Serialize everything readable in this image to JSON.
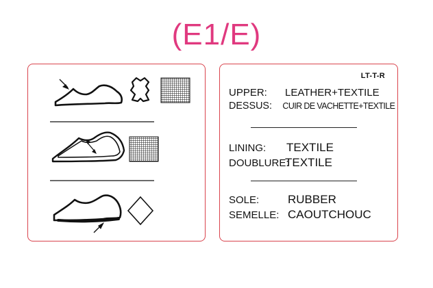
{
  "title": "(E1/E)",
  "colors": {
    "title": "#e0397f",
    "card_border": "#d9434c",
    "ink": "#111111"
  },
  "icons": {
    "left_panel": [
      "shoe-upper-icon",
      "leather-hide-icon",
      "textile-grid-icon",
      "shoe-lining-icon",
      "textile-grid-icon",
      "shoe-sole-icon",
      "other-material-diamond-icon"
    ]
  },
  "label": {
    "code": "LT-T-R",
    "upper": {
      "label_en": "UPPER:",
      "value_en": "LEATHER+TEXTILE",
      "label_fr": "DESSUS:",
      "value_fr": "CUIR DE VACHETTE+TEXTILE"
    },
    "lining": {
      "label_en": "LINING:",
      "value_en": "TEXTILE",
      "label_fr": "DOUBLURE:",
      "value_fr": "TEXTILE"
    },
    "sole": {
      "label_en": "SOLE:",
      "value_en": "RUBBER",
      "label_fr": "SEMELLE:",
      "value_fr": "CAOUTCHOUC"
    }
  }
}
